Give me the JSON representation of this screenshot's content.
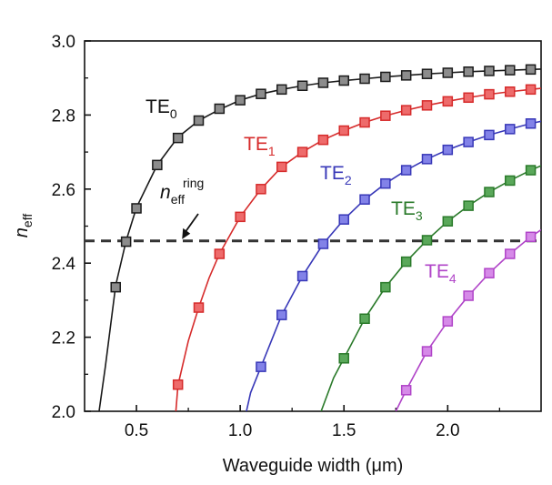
{
  "chart_data": {
    "type": "line",
    "title": "",
    "xlabel": "Waveguide width (μm)",
    "ylabel": {
      "main": "n",
      "sub": "eff"
    },
    "xlim": [
      0.25,
      2.45
    ],
    "ylim": [
      2.0,
      3.0
    ],
    "xticks": [
      "0.5",
      "1.0",
      "1.5",
      "2.0"
    ],
    "xtick_values": [
      0.5,
      1.0,
      1.5,
      2.0
    ],
    "yticks": [
      "2.0",
      "2.2",
      "2.4",
      "2.6",
      "2.8",
      "3.0"
    ],
    "ytick_values": [
      2.0,
      2.2,
      2.4,
      2.6,
      2.8,
      3.0
    ],
    "reference_line": {
      "y": 2.46,
      "style": "dashed",
      "color": "#333333"
    },
    "annotation": {
      "main": "n",
      "sub": "eff",
      "sup": "ring",
      "arrow_to": [
        0.72,
        2.465
      ]
    },
    "series": [
      {
        "name": "TE0",
        "label_main": "TE",
        "label_sub": "0",
        "color": "#1a1a1a",
        "fill": "#8c8c8c",
        "line": [
          [
            0.32,
            2.0
          ],
          [
            0.35,
            2.12
          ],
          [
            0.4,
            2.34
          ],
          [
            0.45,
            2.46
          ],
          [
            0.5,
            2.55
          ],
          [
            0.6,
            2.665
          ],
          [
            0.7,
            2.74
          ],
          [
            0.8,
            2.785
          ],
          [
            0.9,
            2.815
          ],
          [
            1.0,
            2.84
          ],
          [
            1.1,
            2.857
          ],
          [
            1.2,
            2.869
          ],
          [
            1.3,
            2.879
          ],
          [
            1.4,
            2.887
          ],
          [
            1.5,
            2.893
          ],
          [
            1.6,
            2.898
          ],
          [
            1.7,
            2.903
          ],
          [
            1.8,
            2.907
          ],
          [
            1.9,
            2.911
          ],
          [
            2.0,
            2.914
          ],
          [
            2.1,
            2.917
          ],
          [
            2.2,
            2.919
          ],
          [
            2.3,
            2.921
          ],
          [
            2.4,
            2.923
          ],
          [
            2.45,
            2.924
          ]
        ],
        "markers": [
          [
            0.4,
            2.335
          ],
          [
            0.45,
            2.458
          ],
          [
            0.5,
            2.548
          ],
          [
            0.6,
            2.665
          ],
          [
            0.7,
            2.738
          ],
          [
            0.8,
            2.785
          ],
          [
            0.9,
            2.817
          ],
          [
            1.0,
            2.84
          ],
          [
            1.1,
            2.857
          ],
          [
            1.2,
            2.869
          ],
          [
            1.3,
            2.879
          ],
          [
            1.4,
            2.887
          ],
          [
            1.5,
            2.893
          ],
          [
            1.6,
            2.898
          ],
          [
            1.7,
            2.903
          ],
          [
            1.8,
            2.907
          ],
          [
            1.9,
            2.911
          ],
          [
            2.0,
            2.914
          ],
          [
            2.1,
            2.917
          ],
          [
            2.2,
            2.919
          ],
          [
            2.3,
            2.921
          ],
          [
            2.4,
            2.923
          ]
        ]
      },
      {
        "name": "TE1",
        "label_main": "TE",
        "label_sub": "1",
        "color": "#d62b2b",
        "fill": "#ee6b6b",
        "line": [
          [
            0.69,
            2.0
          ],
          [
            0.7,
            2.07
          ],
          [
            0.75,
            2.19
          ],
          [
            0.8,
            2.28
          ],
          [
            0.85,
            2.36
          ],
          [
            0.9,
            2.425
          ],
          [
            1.0,
            2.525
          ],
          [
            1.1,
            2.6
          ],
          [
            1.2,
            2.66
          ],
          [
            1.3,
            2.7
          ],
          [
            1.4,
            2.733
          ],
          [
            1.5,
            2.758
          ],
          [
            1.6,
            2.78
          ],
          [
            1.7,
            2.798
          ],
          [
            1.8,
            2.813
          ],
          [
            1.9,
            2.826
          ],
          [
            2.0,
            2.837
          ],
          [
            2.1,
            2.847
          ],
          [
            2.2,
            2.856
          ],
          [
            2.3,
            2.863
          ],
          [
            2.4,
            2.869
          ],
          [
            2.45,
            2.872
          ]
        ],
        "markers": [
          [
            0.7,
            2.072
          ],
          [
            0.8,
            2.28
          ],
          [
            0.9,
            2.425
          ],
          [
            1.0,
            2.525
          ],
          [
            1.1,
            2.6
          ],
          [
            1.2,
            2.66
          ],
          [
            1.3,
            2.7
          ],
          [
            1.4,
            2.733
          ],
          [
            1.5,
            2.758
          ],
          [
            1.6,
            2.78
          ],
          [
            1.7,
            2.798
          ],
          [
            1.8,
            2.813
          ],
          [
            1.9,
            2.826
          ],
          [
            2.0,
            2.837
          ],
          [
            2.1,
            2.847
          ],
          [
            2.2,
            2.856
          ],
          [
            2.3,
            2.863
          ],
          [
            2.4,
            2.869
          ]
        ]
      },
      {
        "name": "TE2",
        "label_main": "TE",
        "label_sub": "2",
        "color": "#3838b8",
        "fill": "#8282e8",
        "line": [
          [
            1.03,
            2.0
          ],
          [
            1.05,
            2.05
          ],
          [
            1.1,
            2.12
          ],
          [
            1.15,
            2.19
          ],
          [
            1.2,
            2.26
          ],
          [
            1.3,
            2.365
          ],
          [
            1.4,
            2.452
          ],
          [
            1.5,
            2.518
          ],
          [
            1.6,
            2.572
          ],
          [
            1.7,
            2.615
          ],
          [
            1.8,
            2.651
          ],
          [
            1.9,
            2.681
          ],
          [
            2.0,
            2.706
          ],
          [
            2.1,
            2.727
          ],
          [
            2.2,
            2.746
          ],
          [
            2.3,
            2.762
          ],
          [
            2.4,
            2.777
          ],
          [
            2.45,
            2.783
          ]
        ],
        "markers": [
          [
            1.1,
            2.12
          ],
          [
            1.2,
            2.26
          ],
          [
            1.3,
            2.365
          ],
          [
            1.4,
            2.452
          ],
          [
            1.5,
            2.518
          ],
          [
            1.6,
            2.572
          ],
          [
            1.7,
            2.615
          ],
          [
            1.8,
            2.651
          ],
          [
            1.9,
            2.681
          ],
          [
            2.0,
            2.706
          ],
          [
            2.1,
            2.727
          ],
          [
            2.2,
            2.746
          ],
          [
            2.3,
            2.762
          ],
          [
            2.4,
            2.777
          ]
        ]
      },
      {
        "name": "TE3",
        "label_main": "TE",
        "label_sub": "3",
        "color": "#2a7a2a",
        "fill": "#5aa85a",
        "line": [
          [
            1.39,
            2.0
          ],
          [
            1.45,
            2.09
          ],
          [
            1.5,
            2.143
          ],
          [
            1.6,
            2.25
          ],
          [
            1.7,
            2.335
          ],
          [
            1.8,
            2.404
          ],
          [
            1.9,
            2.462
          ],
          [
            2.0,
            2.513
          ],
          [
            2.1,
            2.555
          ],
          [
            2.2,
            2.592
          ],
          [
            2.3,
            2.623
          ],
          [
            2.4,
            2.651
          ],
          [
            2.45,
            2.663
          ]
        ],
        "markers": [
          [
            1.5,
            2.143
          ],
          [
            1.6,
            2.25
          ],
          [
            1.7,
            2.335
          ],
          [
            1.8,
            2.404
          ],
          [
            1.9,
            2.462
          ],
          [
            2.0,
            2.513
          ],
          [
            2.1,
            2.555
          ],
          [
            2.2,
            2.592
          ],
          [
            2.3,
            2.623
          ],
          [
            2.4,
            2.651
          ]
        ]
      },
      {
        "name": "TE4",
        "label_main": "TE",
        "label_sub": "4",
        "color": "#b044c8",
        "fill": "#d68ae8",
        "line": [
          [
            1.75,
            2.0
          ],
          [
            1.8,
            2.057
          ],
          [
            1.9,
            2.162
          ],
          [
            2.0,
            2.243
          ],
          [
            2.1,
            2.312
          ],
          [
            2.2,
            2.373
          ],
          [
            2.3,
            2.425
          ],
          [
            2.4,
            2.471
          ],
          [
            2.45,
            2.49
          ]
        ],
        "markers": [
          [
            1.8,
            2.057
          ],
          [
            1.9,
            2.162
          ],
          [
            2.0,
            2.243
          ],
          [
            2.1,
            2.312
          ],
          [
            2.2,
            2.373
          ],
          [
            2.3,
            2.425
          ],
          [
            2.4,
            2.471
          ]
        ]
      }
    ]
  }
}
